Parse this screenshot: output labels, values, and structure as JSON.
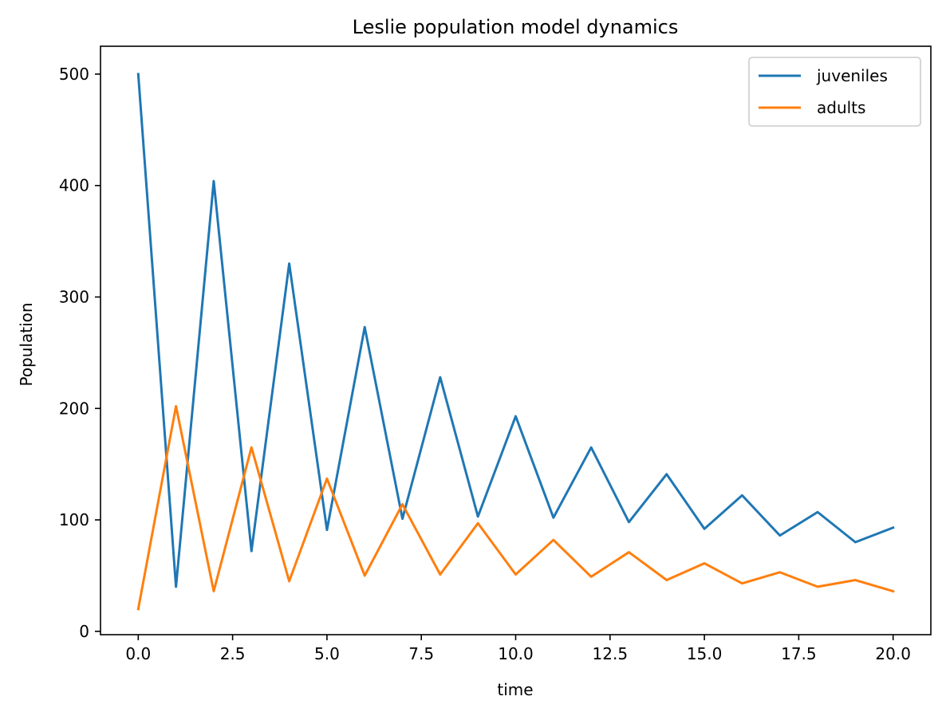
{
  "chart_data": {
    "type": "line",
    "title": "Leslie population model dynamics",
    "xlabel": "time",
    "ylabel": "Population",
    "xlim": [
      -1,
      21
    ],
    "ylim": [
      -3,
      525
    ],
    "x_ticks": [
      0,
      2.5,
      5,
      7.5,
      10,
      12.5,
      15,
      17.5,
      20
    ],
    "x_tick_labels": [
      "0.0",
      "2.5",
      "5.0",
      "7.5",
      "10.0",
      "12.5",
      "15.0",
      "17.5",
      "20.0"
    ],
    "y_ticks": [
      0,
      100,
      200,
      300,
      400,
      500
    ],
    "y_tick_labels": [
      "0",
      "100",
      "200",
      "300",
      "400",
      "500"
    ],
    "grid": false,
    "legend": "top-right",
    "x": [
      0,
      1,
      2,
      3,
      4,
      5,
      6,
      7,
      8,
      9,
      10,
      11,
      12,
      13,
      14,
      15,
      16,
      17,
      18,
      19,
      20
    ],
    "series": [
      {
        "name": "juveniles",
        "color": "#1f77b4",
        "values": [
          500,
          40,
          404,
          72,
          330,
          91,
          273,
          101,
          228,
          103,
          193,
          102,
          165,
          98,
          141,
          92,
          122,
          86,
          107,
          80,
          93
        ]
      },
      {
        "name": "adults",
        "color": "#ff7f0e",
        "values": [
          20,
          202,
          36,
          165,
          45,
          137,
          50,
          114,
          51,
          97,
          51,
          82,
          49,
          71,
          46,
          61,
          43,
          53,
          40,
          46,
          36
        ]
      }
    ]
  }
}
